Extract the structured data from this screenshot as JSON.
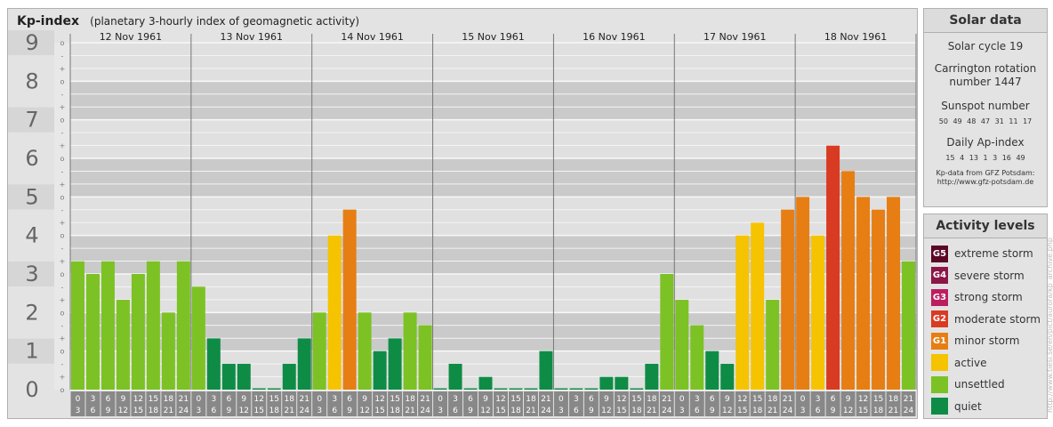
{
  "header": {
    "title": "Kp-index",
    "subtitle": "(planetary 3-hourly index of geomagnetic activity)"
  },
  "chart_data": {
    "type": "bar",
    "title": "Kp-index",
    "subtitle": "(planetary 3-hourly index of geomagnetic activity)",
    "ylim": [
      0,
      9
    ],
    "y_major_ticks": [
      "0",
      "1",
      "2",
      "3",
      "4",
      "5",
      "6",
      "7",
      "8",
      "9"
    ],
    "y_minor_ticks": [
      "-",
      "o",
      "+"
    ],
    "days": [
      "12 Nov 1961",
      "13 Nov 1961",
      "14 Nov 1961",
      "15 Nov 1961",
      "16 Nov 1961",
      "17 Nov 1961",
      "18 Nov 1961"
    ],
    "interval_start": [
      "0",
      "3",
      "6",
      "9",
      "12",
      "15",
      "18",
      "21"
    ],
    "interval_end": [
      "3",
      "6",
      "9",
      "12",
      "15",
      "18",
      "21",
      "24"
    ],
    "values": [
      [
        3.33,
        3.0,
        3.33,
        2.33,
        3.0,
        3.33,
        2.0,
        3.33
      ],
      [
        2.67,
        1.33,
        0.67,
        0.67,
        0.0,
        0.0,
        0.67,
        1.33
      ],
      [
        2.0,
        4.0,
        4.67,
        2.0,
        1.0,
        1.33,
        2.0,
        1.67
      ],
      [
        0.0,
        0.67,
        0.0,
        0.33,
        0.0,
        0.0,
        0.0,
        1.0
      ],
      [
        0.0,
        0.0,
        0.0,
        0.33,
        0.33,
        0.0,
        0.67,
        3.0
      ],
      [
        2.33,
        1.67,
        1.0,
        0.67,
        4.0,
        4.33,
        2.33,
        4.67
      ],
      [
        5.0,
        4.0,
        6.33,
        5.67,
        5.0,
        4.67,
        5.0,
        3.33
      ]
    ],
    "grid": true,
    "colors": {
      "quiet": "#0e8c46",
      "unsettled": "#7cc224",
      "active": "#f6c300",
      "minor_storm": "#e67e14",
      "moderate_storm": "#d93a22",
      "strong_storm": "#bb1f60",
      "severe_storm": "#8c1648",
      "extreme_storm": "#5a0826"
    }
  },
  "solar": {
    "header": "Solar data",
    "cycle": "Solar cycle 19",
    "carrington_line1": "Carrington rotation",
    "carrington_line2": "number 1447",
    "sunspot_label": "Sunspot number",
    "sunspot_values": "50 49 48 47 31 11 17",
    "ap_label": "Daily Ap-index",
    "ap_values": "15 4 13 1 3 16 49",
    "credit_line1": "Kp-data from GFZ Potsdam:",
    "credit_line2": "http://www.gfz-potsdam.de"
  },
  "activity": {
    "header": "Activity levels",
    "items": [
      {
        "badge": "G5",
        "label": "extreme storm",
        "color": "#5a0826"
      },
      {
        "badge": "G4",
        "label": "severe storm",
        "color": "#8c1648"
      },
      {
        "badge": "G3",
        "label": "strong storm",
        "color": "#bb1f60"
      },
      {
        "badge": "G2",
        "label": "moderate storm",
        "color": "#d93a22"
      },
      {
        "badge": "G1",
        "label": "minor storm",
        "color": "#e67e14"
      },
      {
        "badge": "",
        "label": "active",
        "color": "#f6c300"
      },
      {
        "badge": "",
        "label": "unsettled",
        "color": "#7cc224"
      },
      {
        "badge": "",
        "label": "quiet",
        "color": "#0e8c46"
      }
    ]
  },
  "watermark": "http://www.tiesi.se/en/pict/aurora/kp_archive.php"
}
